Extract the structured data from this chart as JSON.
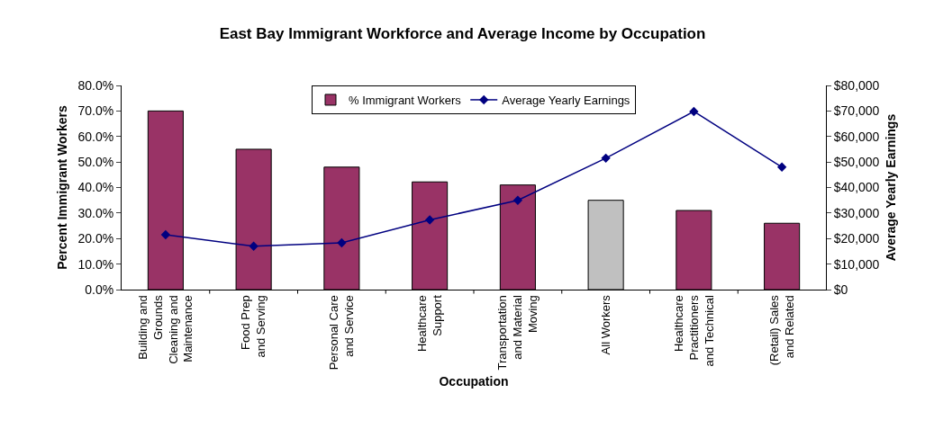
{
  "chart_data": {
    "type": "bar",
    "title": "East Bay Immigrant Workforce and Average Income by Occupation",
    "xlabel": "Occupation",
    "ylabel": "Percent Immigrant Workers",
    "y2label": "Average Yearly Earnings",
    "categories": [
      "Building and\nGrounds\nCleaning and\nMaintenance",
      "Food Prep\nand Serving",
      "Personal Care\nand Service",
      "Healthcare\nSupport",
      "Transportation\nand Material\nMoving",
      "All Workers",
      "Healthcare\nPractitioners\nand Technical",
      "(Retail) Sales\nand Related"
    ],
    "series": [
      {
        "name": "% Immigrant Workers",
        "colors": [
          "#993366",
          "#993366",
          "#993366",
          "#993366",
          "#993366",
          "#c0c0c0",
          "#993366",
          "#993366"
        ],
        "values": [
          70,
          55,
          48,
          42.2,
          41,
          35,
          31,
          26
        ]
      },
      {
        "name": "Average Yearly Earnings",
        "type": "line",
        "axis": "y2",
        "color": "#000080",
        "marker": "diamond",
        "values": [
          21500,
          17000,
          18300,
          27300,
          35000,
          51500,
          69800,
          48000
        ]
      }
    ],
    "ylim": [
      0,
      80
    ],
    "yticks": [
      {
        "value": 0,
        "label": "0.0%"
      },
      {
        "value": 10,
        "label": "10.0%"
      },
      {
        "value": 20,
        "label": "20.0%"
      },
      {
        "value": 30,
        "label": "30.0%"
      },
      {
        "value": 40,
        "label": "40.0%"
      },
      {
        "value": 50,
        "label": "50.0%"
      },
      {
        "value": 60,
        "label": "60.0%"
      },
      {
        "value": 70,
        "label": "70.0%"
      },
      {
        "value": 80,
        "label": "80.0%"
      }
    ],
    "y2lim": [
      0,
      80000
    ],
    "y2ticks": [
      {
        "value": 0,
        "label": "$0"
      },
      {
        "value": 10000,
        "label": "$10,000"
      },
      {
        "value": 20000,
        "label": "$20,000"
      },
      {
        "value": 30000,
        "label": "$30,000"
      },
      {
        "value": 40000,
        "label": "$40,000"
      },
      {
        "value": 50000,
        "label": "$50,000"
      },
      {
        "value": 60000,
        "label": "$60,000"
      },
      {
        "value": 70000,
        "label": "$70,000"
      },
      {
        "value": 80000,
        "label": "$80,000"
      }
    ],
    "grid": false,
    "legend": "top"
  }
}
